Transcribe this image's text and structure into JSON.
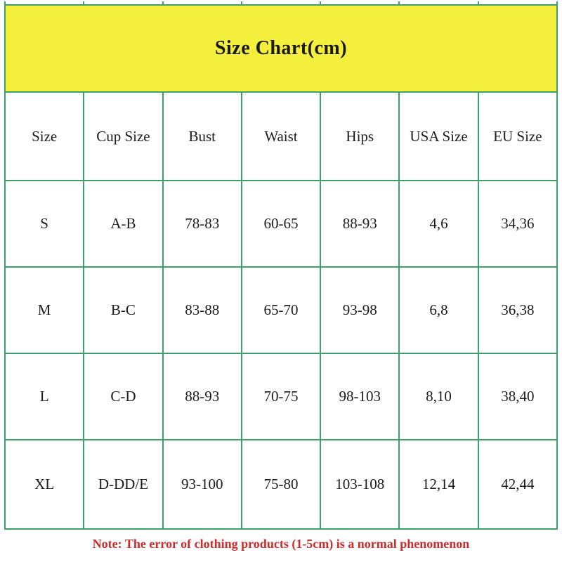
{
  "chart_data": {
    "type": "table",
    "title": "Size Chart(cm)",
    "columns": [
      "Size",
      "Cup Size",
      "Bust",
      "Waist",
      "Hips",
      "USA Size",
      "EU Size"
    ],
    "rows": [
      [
        "S",
        "A-B",
        "78-83",
        "60-65",
        "88-93",
        "4,6",
        "34,36"
      ],
      [
        "M",
        "B-C",
        "83-88",
        "65-70",
        "93-98",
        "6,8",
        "36,38"
      ],
      [
        "L",
        "C-D",
        "88-93",
        "70-75",
        "98-103",
        "8,10",
        "38,40"
      ],
      [
        "XL",
        "D-DD/E",
        "93-100",
        "75-80",
        "103-108",
        "12,14",
        "42,44"
      ]
    ],
    "note": "Note: The error of clothing products (1-5cm) is a normal phenomenon",
    "layout_hints": {
      "grid": "on",
      "header_band": "yellow merged cell spanning all columns",
      "units": "cm"
    }
  },
  "colors": {
    "banner_bg": "#F3EF3C",
    "border": "#3F9F68",
    "note_text": "#CB2C2C",
    "text": "#1B1B1B"
  }
}
